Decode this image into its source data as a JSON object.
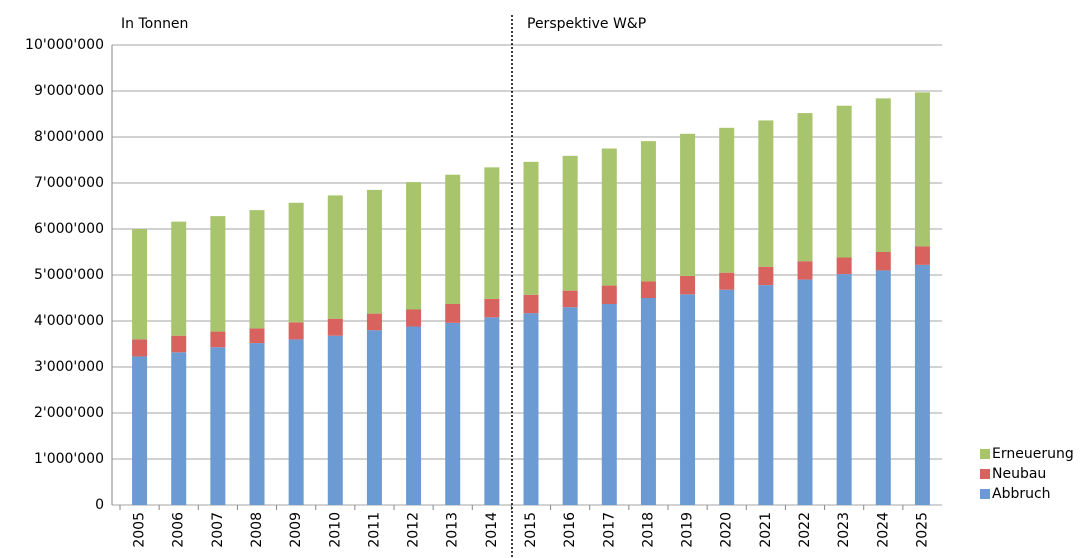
{
  "chart_data": {
    "type": "stacked_bar",
    "annotations": [
      "In Tonnen",
      "Perspektive W&P"
    ],
    "categories": [
      "2005",
      "2006",
      "2007",
      "2008",
      "2009",
      "2010",
      "2011",
      "2012",
      "2013",
      "2014",
      "2015",
      "2016",
      "2017",
      "2018",
      "2019",
      "2020",
      "2021",
      "2022",
      "2023",
      "2024",
      "2025"
    ],
    "series": [
      {
        "name": "Abbruch",
        "color": "#6b9bd2",
        "values": [
          3230000,
          3320000,
          3430000,
          3520000,
          3600000,
          3680000,
          3800000,
          3880000,
          3960000,
          4080000,
          4170000,
          4300000,
          4370000,
          4500000,
          4580000,
          4680000,
          4780000,
          4900000,
          5020000,
          5100000,
          5220000
        ]
      },
      {
        "name": "Neubau",
        "color": "#d8625e",
        "values": [
          370000,
          360000,
          340000,
          320000,
          370000,
          370000,
          360000,
          370000,
          410000,
          400000,
          400000,
          360000,
          400000,
          360000,
          400000,
          370000,
          400000,
          400000,
          360000,
          400000,
          400000
        ]
      },
      {
        "name": "Erneuerung",
        "color": "#a8c46c",
        "values": [
          2400000,
          2480000,
          2510000,
          2570000,
          2600000,
          2680000,
          2690000,
          2770000,
          2810000,
          2860000,
          2890000,
          2930000,
          2980000,
          3050000,
          3090000,
          3150000,
          3180000,
          3220000,
          3300000,
          3340000,
          3350000
        ]
      }
    ],
    "ylim": [
      0,
      10000000
    ],
    "yticks": [
      0,
      {
        "value": 1000000,
        "label": "1'000'000"
      },
      {
        "value": 2000000,
        "label": "2'000'000"
      },
      {
        "value": 3000000,
        "label": "3'000'000"
      },
      {
        "value": 4000000,
        "label": "4'000'000"
      },
      {
        "value": 5000000,
        "label": "5'000'000"
      },
      {
        "value": 6000000,
        "label": "6'000'000"
      },
      {
        "value": 7000000,
        "label": "7'000'000"
      },
      {
        "value": 8000000,
        "label": "8'000'000"
      },
      {
        "value": 9000000,
        "label": "9'000'000"
      },
      {
        "value": 10000000,
        "label": "10'000'000"
      }
    ],
    "grid": true
  }
}
